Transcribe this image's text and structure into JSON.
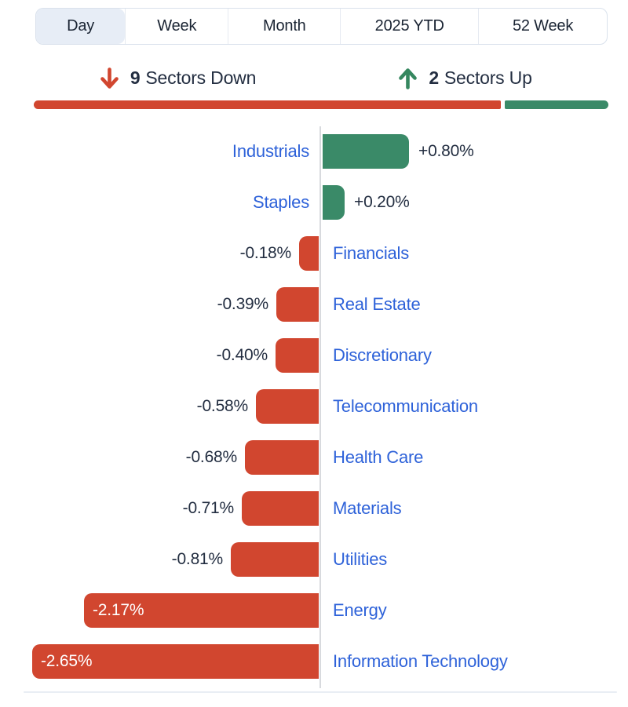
{
  "tabs": {
    "items": [
      {
        "label": "Day",
        "selected": true
      },
      {
        "label": "Week",
        "selected": false
      },
      {
        "label": "Month",
        "selected": false
      },
      {
        "label": "2025 YTD",
        "selected": false
      },
      {
        "label": "52 Week",
        "selected": false
      }
    ]
  },
  "summary": {
    "down": {
      "count": "9",
      "label": "Sectors Down",
      "icon": "arrow-down-icon"
    },
    "up": {
      "count": "2",
      "label": "Sectors Up",
      "icon": "arrow-up-icon"
    }
  },
  "distribution": {
    "down_count": 9,
    "up_count": 2
  },
  "chart_data": {
    "type": "bar",
    "orientation": "horizontal",
    "baseline": "zero-centered",
    "unit": "%",
    "xlim": [
      -2.65,
      0.8
    ],
    "grid": false,
    "sectors": [
      {
        "name": "Industrials",
        "value": 0.8,
        "display": "+0.80%",
        "direction": "up"
      },
      {
        "name": "Staples",
        "value": 0.2,
        "display": "+0.20%",
        "direction": "up"
      },
      {
        "name": "Financials",
        "value": -0.18,
        "display": "-0.18%",
        "direction": "down"
      },
      {
        "name": "Real Estate",
        "value": -0.39,
        "display": "-0.39%",
        "direction": "down"
      },
      {
        "name": "Discretionary",
        "value": -0.4,
        "display": "-0.40%",
        "direction": "down"
      },
      {
        "name": "Telecommunication",
        "value": -0.58,
        "display": "-0.58%",
        "direction": "down"
      },
      {
        "name": "Health Care",
        "value": -0.68,
        "display": "-0.68%",
        "direction": "down"
      },
      {
        "name": "Materials",
        "value": -0.71,
        "display": "-0.71%",
        "direction": "down"
      },
      {
        "name": "Utilities",
        "value": -0.81,
        "display": "-0.81%",
        "direction": "down"
      },
      {
        "name": "Energy",
        "value": -2.17,
        "display": "-2.17%",
        "direction": "down"
      },
      {
        "name": "Information Technology",
        "value": -2.65,
        "display": "-2.65%",
        "direction": "down"
      }
    ]
  },
  "colors": {
    "up_green": "#3a8a68",
    "down_red": "#d1462f",
    "sector_link_blue": "#2e62d9",
    "text_dark": "#232e41",
    "selected_tab_bg": "#e7edf6",
    "axis_gray": "#d8dade"
  }
}
